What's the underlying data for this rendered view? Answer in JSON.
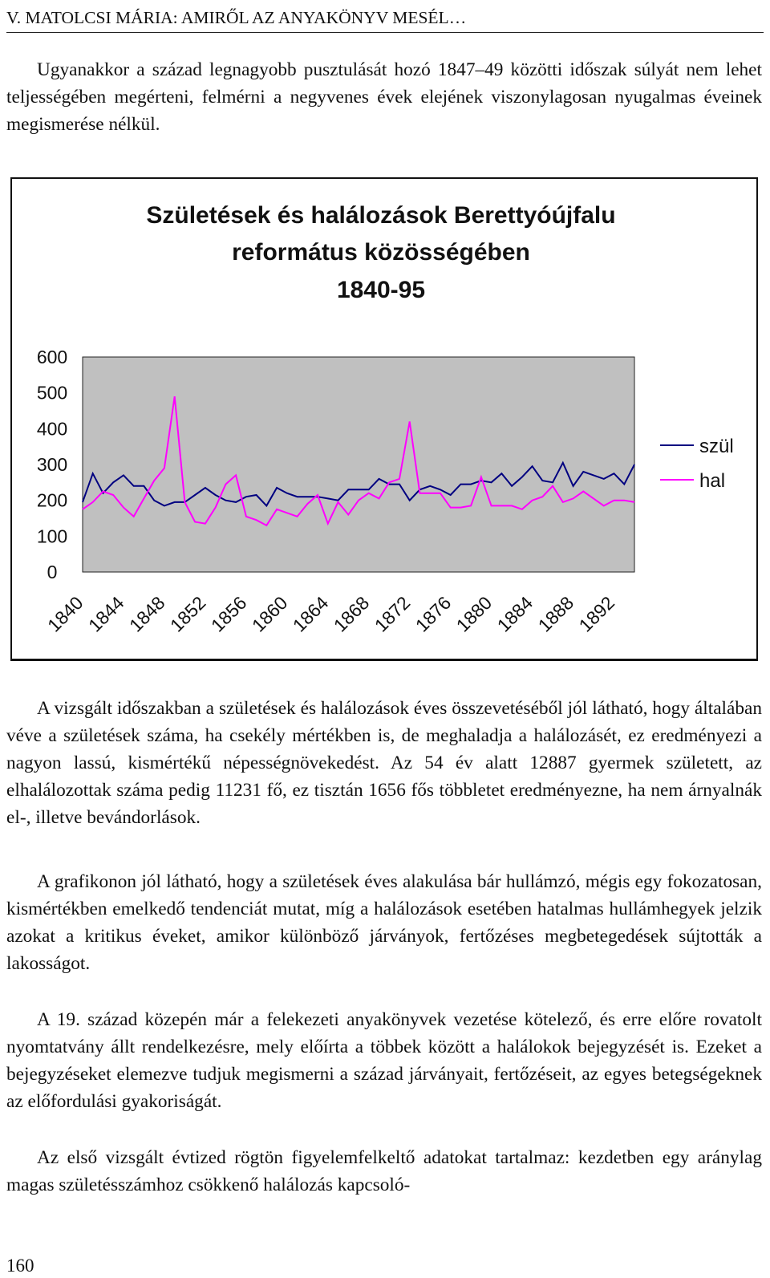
{
  "header": {
    "running_title": "V. MATOLCSI MÁRIA: AMIRŐL AZ ANYAKÖNYV MESÉL…"
  },
  "paragraphs": [
    "Ugyanakkor a század legnagyobb pusztulását hozó 1847–49 közötti időszak súlyát nem lehet teljességében megérteni, felmérni a negyvenes évek elejének viszonylagosan nyugalmas éveinek megismerése nélkül.",
    "A vizsgált időszakban a születések és halálozások éves összevetéséből jól látható, hogy általában véve a születések száma, ha csekély mértékben is, de meghaladja a halálozásét, ez eredményezi a nagyon lassú, kismértékű népességnövekedést. Az 54 év alatt 12887 gyermek született, az elhalálozottak száma pedig 11231 fő, ez tisztán 1656 fős többletet eredményezne, ha nem árnyalnák el-, illetve bevándorlások.",
    "A grafikonon jól látható, hogy a születések éves alakulása bár hullámzó, mégis egy fokozatosan, kismértékben emelkedő tendenciát mutat, míg a halálozások esetében hatalmas hullámhegyek jelzik azokat a kritikus éveket, amikor különböző járványok, fertőzéses megbetegedések sújtották a lakosságot.",
    "A 19. század közepén már a felekezeti anyakönyvek vezetése kötelező, és erre előre rovatolt nyomtatvány állt rendelkezésre, mely előírta a többek között a halálokok bejegyzését is. Ezeket a bejegyzéseket elemezve tudjuk megismerni a század járványait, fertőzéseit, az egyes betegségeknek az előfordulási gyakoriságát.",
    "Az első vizsgált évtized rögtön figyelemfelkeltő adatokat tartalmaz: kezdetben egy aránylag magas születésszámhoz csökkenő halálozás kapcsoló-"
  ],
  "page_number": "160",
  "chart_data": {
    "type": "line",
    "title": [
      "Születések és halálozások Berettyóújfalu",
      "református közösségében",
      "1840-95"
    ],
    "xlabel": "",
    "ylabel": "",
    "ylim": [
      0,
      600
    ],
    "yticks": [
      "600",
      "500",
      "400",
      "300",
      "200",
      "100",
      "0"
    ],
    "xticks": [
      "1840",
      "1844",
      "1848",
      "1852",
      "1856",
      "1860",
      "1864",
      "1868",
      "1872",
      "1876",
      "1880",
      "1884",
      "1888",
      "1892"
    ],
    "x_start": 1840,
    "x_end": 1895,
    "grid": false,
    "legend_position": "right",
    "plot_background": "#c0c0c0",
    "series": [
      {
        "name": "szül",
        "color": "#000080",
        "values": [
          195,
          275,
          220,
          250,
          270,
          240,
          240,
          200,
          185,
          195,
          195,
          215,
          235,
          215,
          200,
          195,
          210,
          215,
          185,
          235,
          220,
          210,
          210,
          210,
          205,
          200,
          230,
          230,
          230,
          260,
          245,
          245,
          200,
          230,
          240,
          230,
          215,
          245,
          245,
          255,
          250,
          275,
          240,
          265,
          295,
          255,
          250,
          305,
          240,
          280,
          270,
          260,
          275,
          245,
          300
        ]
      },
      {
        "name": "hal",
        "color": "#ff00ff",
        "values": [
          175,
          195,
          225,
          215,
          180,
          155,
          205,
          255,
          290,
          490,
          195,
          140,
          135,
          180,
          245,
          270,
          155,
          145,
          130,
          175,
          165,
          155,
          190,
          215,
          135,
          195,
          160,
          200,
          220,
          205,
          250,
          260,
          420,
          220,
          220,
          220,
          180,
          180,
          185,
          265,
          185,
          185,
          185,
          175,
          200,
          210,
          240,
          195,
          205,
          225,
          205,
          185,
          200,
          200,
          195
        ]
      }
    ]
  }
}
